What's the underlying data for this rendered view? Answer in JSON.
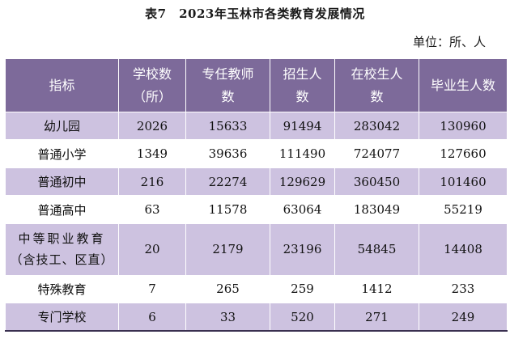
{
  "title": "表7　2023年玉林市各类教育发展情况",
  "unit": "单位：所、人",
  "headers": {
    "indicator": "指标",
    "schools": [
      "学校数",
      "（所）"
    ],
    "teachers": [
      "专任教师",
      "数"
    ],
    "enrolled": [
      "招生人",
      "数"
    ],
    "students": [
      "在校生人",
      "数"
    ],
    "graduates": "毕业生人数"
  },
  "rows": [
    {
      "label": [
        "幼儿园"
      ],
      "schools": "2026",
      "teachers": "15633",
      "enrolled": "91494",
      "students": "283042",
      "graduates": "130960"
    },
    {
      "label": [
        "普通小学"
      ],
      "schools": "1349",
      "teachers": "39636",
      "enrolled": "111490",
      "students": "724077",
      "graduates": "127660"
    },
    {
      "label": [
        "普通初中"
      ],
      "schools": "216",
      "teachers": "22274",
      "enrolled": "129629",
      "students": "360450",
      "graduates": "101460"
    },
    {
      "label": [
        "普通高中"
      ],
      "schools": "63",
      "teachers": "11578",
      "enrolled": "63064",
      "students": "183049",
      "graduates": "55219"
    },
    {
      "label": [
        "中等职业教育",
        "（含技工、区直）"
      ],
      "schools": "20",
      "teachers": "2179",
      "enrolled": "23196",
      "students": "54845",
      "graduates": "14408"
    },
    {
      "label": [
        "特殊教育"
      ],
      "schools": "7",
      "teachers": "265",
      "enrolled": "259",
      "students": "1412",
      "graduates": "233"
    },
    {
      "label": [
        "专门学校"
      ],
      "schools": "6",
      "teachers": "33",
      "enrolled": "520",
      "students": "271",
      "graduates": "249"
    }
  ],
  "colors": {
    "header_bg": "#7d6a9a",
    "row_shade": "#cdc2e0",
    "rule": "#3a3050"
  }
}
